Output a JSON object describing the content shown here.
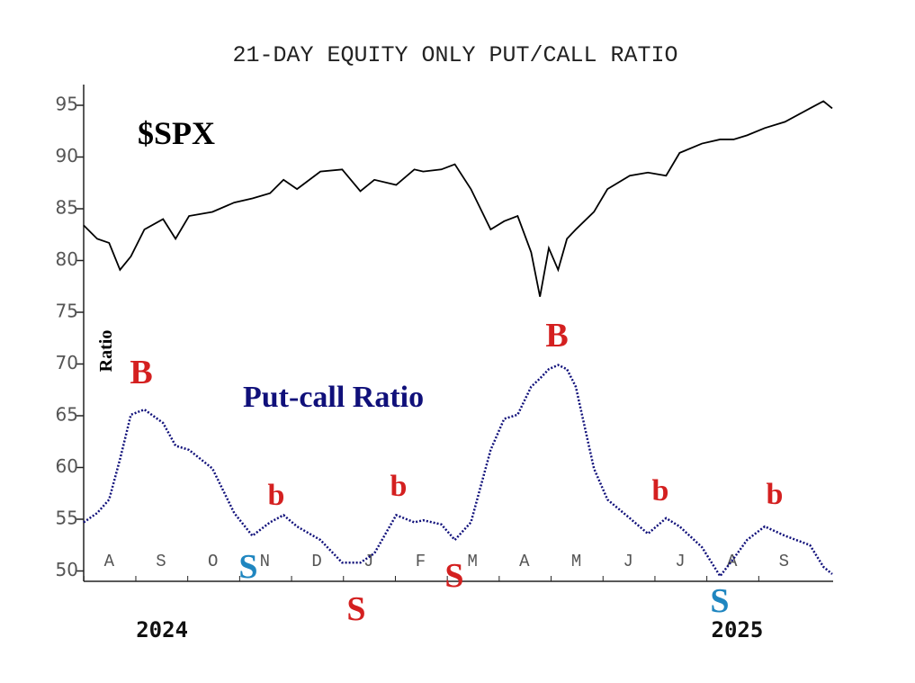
{
  "chart_data": {
    "type": "line",
    "title": "21-DAY EQUITY ONLY PUT/CALL RATIO",
    "y_label": "Ratio",
    "x": [
      -0.49,
      -0.23,
      0,
      0.21,
      0.42,
      0.68,
      1.04,
      1.28,
      1.54,
      1.99,
      2.41,
      2.76,
      3.1,
      3.36,
      3.62,
      4.07,
      4.49,
      4.84,
      5.11,
      5.53,
      5.88,
      6.05,
      6.4,
      6.66,
      6.97,
      7.35,
      7.61,
      7.87,
      8.13,
      8.3,
      8.47,
      8.65,
      8.82,
      8.99,
      9.34,
      9.6,
      10.03,
      10.38,
      10.73,
      10.99,
      11.42,
      11.77,
      12.03,
      12.29,
      12.63,
      13.02,
      13.5,
      13.76,
      13.93
    ],
    "series": [
      {
        "name": "$SPX",
        "color": "#000000",
        "values": [
          83.4,
          82.1,
          81.7,
          79.1,
          80.4,
          83.0,
          84.0,
          82.1,
          84.3,
          84.7,
          85.6,
          86.0,
          86.5,
          87.8,
          86.9,
          88.6,
          88.8,
          86.7,
          87.8,
          87.3,
          88.8,
          88.6,
          88.8,
          89.3,
          86.9,
          83.0,
          83.8,
          84.3,
          80.8,
          76.5,
          81.2,
          79.1,
          82.1,
          83.0,
          84.7,
          86.9,
          88.2,
          88.5,
          88.2,
          90.4,
          91.3,
          91.7,
          91.7,
          92.1,
          92.8,
          93.4,
          94.7,
          95.4,
          94.7
        ]
      },
      {
        "name": "Put-call Ratio",
        "color": "#10107a",
        "values": [
          54.7,
          55.6,
          56.9,
          60.8,
          65.1,
          65.6,
          64.3,
          62.1,
          61.7,
          59.9,
          55.6,
          53.4,
          54.7,
          55.4,
          54.3,
          53.0,
          50.8,
          50.8,
          51.7,
          55.4,
          54.7,
          54.9,
          54.5,
          53.0,
          54.7,
          61.7,
          64.7,
          65.1,
          67.8,
          68.6,
          69.5,
          69.9,
          69.5,
          67.8,
          59.9,
          56.9,
          55.1,
          53.6,
          55.1,
          54.3,
          52.3,
          49.5,
          51.2,
          53.0,
          54.3,
          53.4,
          52.5,
          50.4,
          49.7
        ]
      }
    ],
    "xlim": [
      -0.49,
      13.93
    ],
    "xticks": [
      {
        "value": 0,
        "label": "A"
      },
      {
        "value": 1,
        "label": "S"
      },
      {
        "value": 2,
        "label": "O"
      },
      {
        "value": 3,
        "label": "N"
      },
      {
        "value": 4,
        "label": "D"
      },
      {
        "value": 5,
        "label": "J"
      },
      {
        "value": 6,
        "label": "F"
      },
      {
        "value": 7,
        "label": "M"
      },
      {
        "value": 8,
        "label": "A"
      },
      {
        "value": 9,
        "label": "M"
      },
      {
        "value": 10,
        "label": "J"
      },
      {
        "value": 11,
        "label": "J"
      },
      {
        "value": 12,
        "label": "A"
      },
      {
        "value": 13,
        "label": "S"
      }
    ],
    "year_labels": [
      {
        "value": 1.02,
        "label": "2024"
      },
      {
        "value": 12.1,
        "label": "2025"
      }
    ],
    "ylim": [
      49,
      97
    ],
    "yticks": [
      50,
      55,
      60,
      65,
      70,
      75,
      80,
      85,
      90,
      95
    ],
    "annotations": [
      {
        "text": "B",
        "color": "#d42020"
      },
      {
        "text": "b",
        "color": "#d42020"
      },
      {
        "text": "b",
        "color": "#d42020"
      },
      {
        "text": "B",
        "color": "#d42020"
      },
      {
        "text": "b",
        "color": "#d42020"
      },
      {
        "text": "b",
        "color": "#d42020"
      },
      {
        "text": "S",
        "color": "#1f86c0"
      },
      {
        "text": "S",
        "color": "#d42020"
      },
      {
        "text": "S",
        "color": "#d42020"
      },
      {
        "text": "S",
        "color": "#1f86c0"
      }
    ]
  }
}
